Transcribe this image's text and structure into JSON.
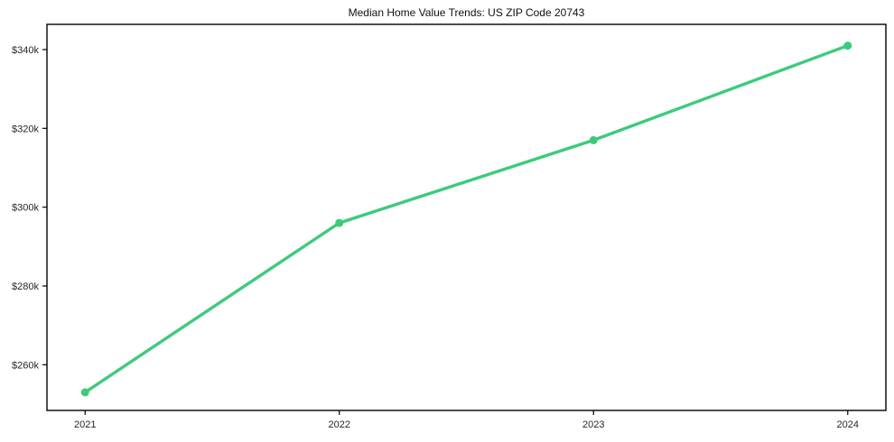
{
  "chart_data": {
    "type": "line",
    "title": "Median Home Value Trends: US ZIP Code 20743",
    "xlabel": "",
    "ylabel": "",
    "x": [
      2021,
      2022,
      2023,
      2024
    ],
    "x_tick_labels": [
      "2021",
      "2022",
      "2023",
      "2024"
    ],
    "values": [
      253000,
      296000,
      317000,
      341000
    ],
    "y_ticks": [
      260000,
      280000,
      300000,
      320000,
      340000
    ],
    "y_tick_labels": [
      "$260k",
      "$280k",
      "$300k",
      "$320k",
      "$340k"
    ],
    "xlim": [
      2020.85,
      2024.15
    ],
    "ylim": [
      248400,
      346400
    ],
    "grid": false,
    "legend": false,
    "line_color": "#3dcb7b",
    "marker_color": "#3dcb7b",
    "axis_color": "#000000",
    "tick_text_color": "#262626",
    "background_color": "#ffffff"
  }
}
